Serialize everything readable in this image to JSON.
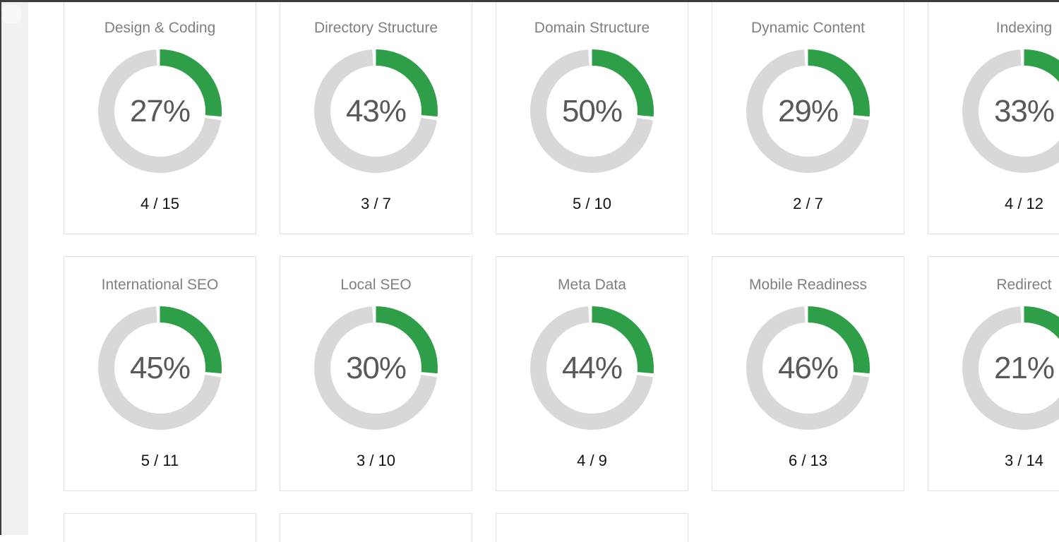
{
  "page": {
    "background": "#ffffff",
    "top_bar_color": "#3d3d3d",
    "scrollbar_track_color": "#f1f1f1"
  },
  "gauge": {
    "arc_degrees": 95,
    "gap_degrees": 3.5,
    "arc_color": "#2f9e48",
    "track_color": "#d8d8d8",
    "ring_outer_diameter": 175,
    "ring_thickness": 23
  },
  "cards": [
    {
      "title": "Design & Coding",
      "percent": 27,
      "percent_label": "27%",
      "score": "4 / 15",
      "passed": 4,
      "total": 15
    },
    {
      "title": "Directory Structure",
      "percent": 43,
      "percent_label": "43%",
      "score": "3 / 7",
      "passed": 3,
      "total": 7
    },
    {
      "title": "Domain Structure",
      "percent": 50,
      "percent_label": "50%",
      "score": "5 / 10",
      "passed": 5,
      "total": 10
    },
    {
      "title": "Dynamic Content",
      "percent": 29,
      "percent_label": "29%",
      "score": "2 / 7",
      "passed": 2,
      "total": 7
    },
    {
      "title": "Indexing",
      "percent": 33,
      "percent_label": "33%",
      "score": "4 / 12",
      "passed": 4,
      "total": 12
    },
    {
      "title": "International SEO",
      "percent": 45,
      "percent_label": "45%",
      "score": "5 / 11",
      "passed": 5,
      "total": 11
    },
    {
      "title": "Local SEO",
      "percent": 30,
      "percent_label": "30%",
      "score": "3 / 10",
      "passed": 3,
      "total": 10
    },
    {
      "title": "Meta Data",
      "percent": 44,
      "percent_label": "44%",
      "score": "4 / 9",
      "passed": 4,
      "total": 9
    },
    {
      "title": "Mobile Readiness",
      "percent": 46,
      "percent_label": "46%",
      "score": "6 / 13",
      "passed": 6,
      "total": 13
    },
    {
      "title": "Redirect",
      "percent": 21,
      "percent_label": "21%",
      "score": "3 / 14",
      "passed": 3,
      "total": 14
    }
  ],
  "partial_row_card_count": 3,
  "chart_data": {
    "type": "pie",
    "subtype": "donut-gauge-grid",
    "items": [
      {
        "label": "Design & Coding",
        "percent": 27,
        "passed": 4,
        "total": 15
      },
      {
        "label": "Directory Structure",
        "percent": 43,
        "passed": 3,
        "total": 7
      },
      {
        "label": "Domain Structure",
        "percent": 50,
        "passed": 5,
        "total": 10
      },
      {
        "label": "Dynamic Content",
        "percent": 29,
        "passed": 2,
        "total": 7
      },
      {
        "label": "Indexing",
        "percent": 33,
        "passed": 4,
        "total": 12
      },
      {
        "label": "International SEO",
        "percent": 45,
        "passed": 5,
        "total": 11
      },
      {
        "label": "Local SEO",
        "percent": 30,
        "passed": 3,
        "total": 10
      },
      {
        "label": "Meta Data",
        "percent": 44,
        "passed": 4,
        "total": 9
      },
      {
        "label": "Mobile Readiness",
        "percent": 46,
        "passed": 6,
        "total": 13
      },
      {
        "label": "Redirect",
        "percent": 21,
        "passed": 3,
        "total": 14
      }
    ]
  }
}
